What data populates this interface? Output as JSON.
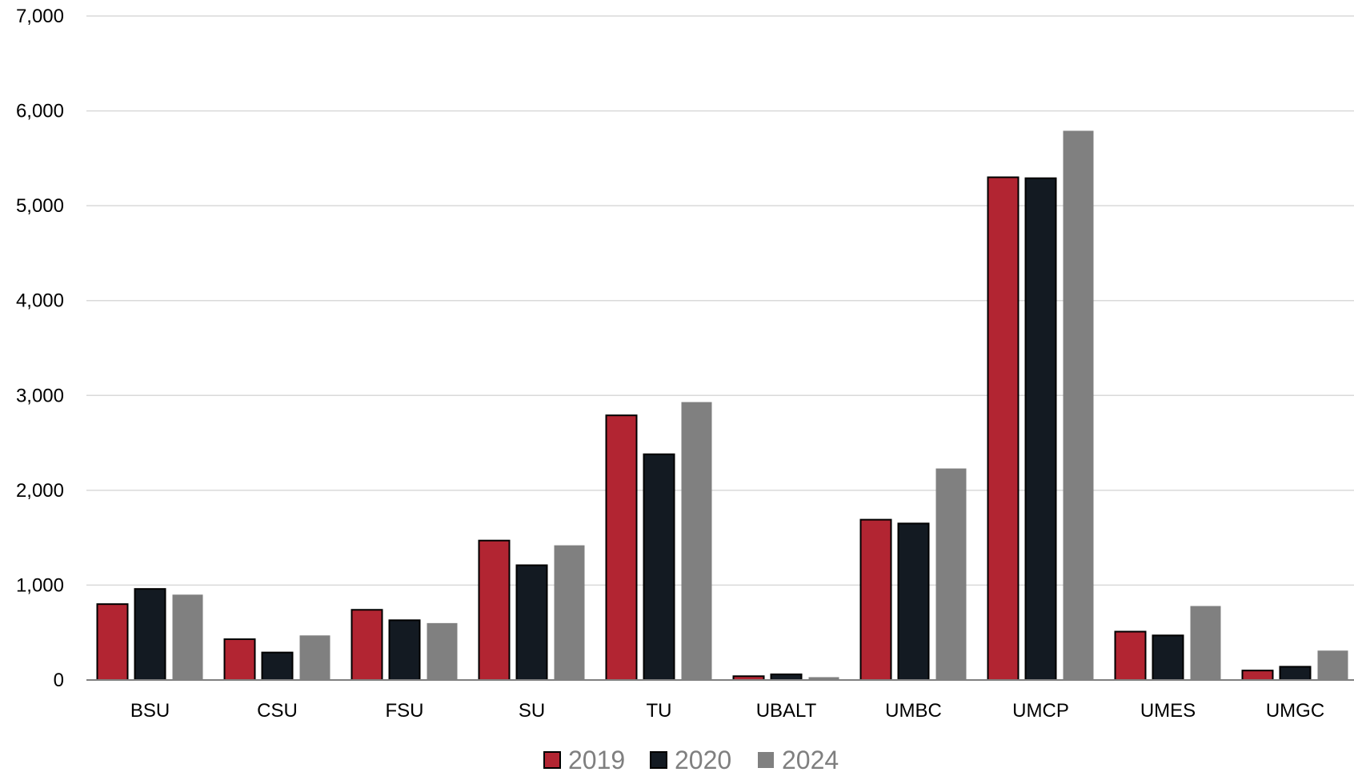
{
  "chart_data": {
    "type": "bar",
    "categories": [
      "BSU",
      "CSU",
      "FSU",
      "SU",
      "TU",
      "UBALT",
      "UMBC",
      "UMCP",
      "UMES",
      "UMGC"
    ],
    "series": [
      {
        "name": "2019",
        "color": "#b22532",
        "values": [
          800,
          430,
          740,
          1470,
          2790,
          40,
          1690,
          5300,
          510,
          100
        ]
      },
      {
        "name": "2020",
        "color": "#131a22",
        "values": [
          960,
          290,
          630,
          1210,
          2380,
          60,
          1650,
          5290,
          470,
          140
        ]
      },
      {
        "name": "2024",
        "color": "#808080",
        "values": [
          900,
          470,
          600,
          1420,
          2930,
          30,
          2230,
          5790,
          780,
          310
        ]
      }
    ],
    "ylim": [
      0,
      7000
    ],
    "yticks": [
      "0",
      "1,000",
      "2,000",
      "3,000",
      "4,000",
      "5,000",
      "6,000",
      "7,000"
    ],
    "grid": true,
    "legend": "bottom-center"
  }
}
